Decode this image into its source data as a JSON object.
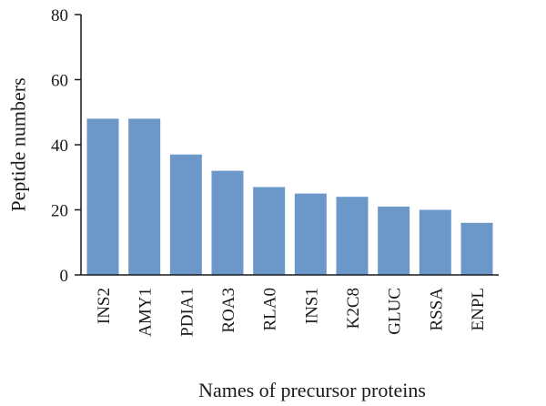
{
  "chart_data": {
    "type": "bar",
    "xlabel": "Names of precursor proteins",
    "ylabel": "Peptide numbers",
    "ylim": [
      0,
      80
    ],
    "yticks": [
      "0",
      "20",
      "40",
      "60",
      "80"
    ],
    "categories": [
      "INS2",
      "AMY1",
      "PDIA1",
      "ROA3",
      "RLA0",
      "INS1",
      "K2C8",
      "GLUC",
      "RSSA",
      "ENPL"
    ],
    "values": [
      48,
      48,
      37,
      32,
      27,
      25,
      24,
      21,
      20,
      16
    ],
    "bar_color": "#6b98c9",
    "grid": false,
    "legend": "none"
  }
}
